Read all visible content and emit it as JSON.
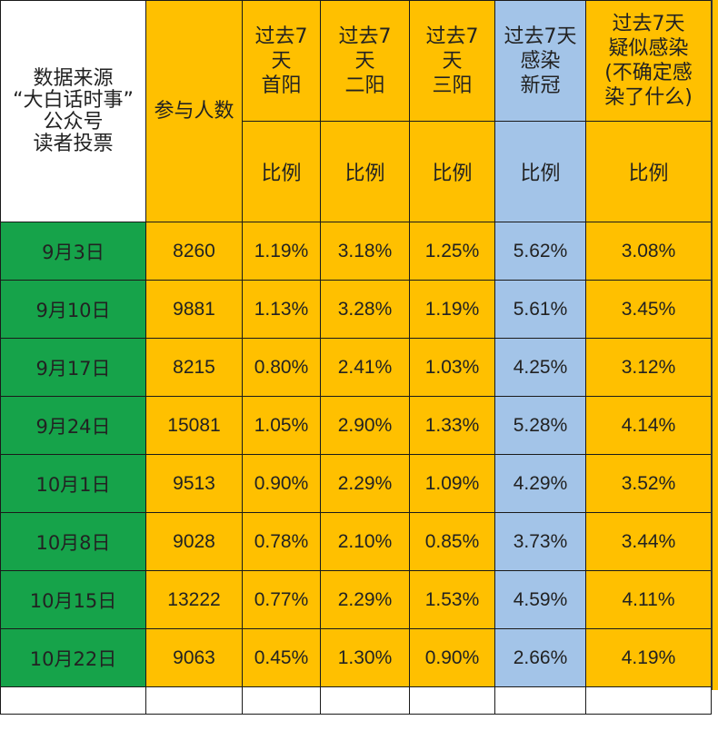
{
  "header": {
    "source_line1": "数据来源",
    "source_line2": "“大白话时事”",
    "source_line3": "公众号",
    "source_line4": "读者投票",
    "participants": "参与人数",
    "col_first_l1": "过去7",
    "col_first_l2": "天",
    "col_first_l3": "首阳",
    "col_second_l1": "过去7",
    "col_second_l2": "天",
    "col_second_l3": "二阳",
    "col_third_l1": "过去7",
    "col_third_l2": "天",
    "col_third_l3": "三阳",
    "col_infected_l1": "过去7天",
    "col_infected_l2": "感染",
    "col_infected_l3": "新冠",
    "col_suspect_l1": "过去7天",
    "col_suspect_l2": "疑似感染",
    "col_suspect_l3": "(不确定感",
    "col_suspect_l4": "染了什么)",
    "ratio_label": "比例"
  },
  "rows": [
    {
      "date": "9月3日",
      "participants": "8260",
      "first": "1.19%",
      "second": "3.18%",
      "third": "1.25%",
      "infected": "5.62%",
      "suspect": "3.08%"
    },
    {
      "date": "9月10日",
      "participants": "9881",
      "first": "1.13%",
      "second": "3.28%",
      "third": "1.19%",
      "infected": "5.61%",
      "suspect": "3.45%"
    },
    {
      "date": "9月17日",
      "participants": "8215",
      "first": "0.80%",
      "second": "2.41%",
      "third": "1.03%",
      "infected": "4.25%",
      "suspect": "3.12%"
    },
    {
      "date": "9月24日",
      "participants": "15081",
      "first": "1.05%",
      "second": "2.90%",
      "third": "1.33%",
      "infected": "5.28%",
      "suspect": "4.14%"
    },
    {
      "date": "10月1日",
      "participants": "9513",
      "first": "0.90%",
      "second": "2.29%",
      "third": "1.09%",
      "infected": "4.29%",
      "suspect": "3.52%"
    },
    {
      "date": "10月8日",
      "participants": "9028",
      "first": "0.78%",
      "second": "2.10%",
      "third": "0.85%",
      "infected": "3.73%",
      "suspect": "3.44%"
    },
    {
      "date": "10月15日",
      "participants": "13222",
      "first": "0.77%",
      "second": "2.29%",
      "third": "1.53%",
      "infected": "4.59%",
      "suspect": "4.11%"
    },
    {
      "date": "10月22日",
      "participants": "9063",
      "first": "0.45%",
      "second": "1.30%",
      "third": "0.90%",
      "infected": "2.66%",
      "suspect": "4.19%"
    }
  ],
  "colors": {
    "orange": "#ffc000",
    "blue": "#a3c4e8",
    "green": "#16a34a",
    "border": "#1a1a1a"
  }
}
